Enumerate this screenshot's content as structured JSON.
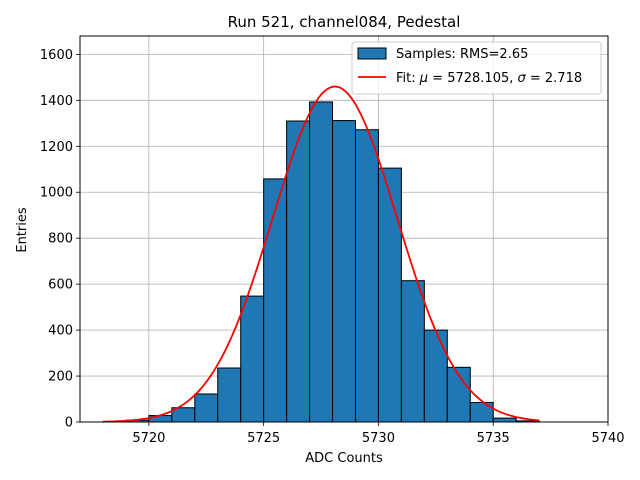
{
  "chart_data": {
    "type": "bar",
    "title": "Run 521, channel084, Pedestal",
    "xlabel": "ADC Counts",
    "ylabel": "Entries",
    "xlim": [
      5717,
      5740
    ],
    "ylim": [
      0,
      1680
    ],
    "xticks": [
      5720,
      5725,
      5730,
      5735,
      5740
    ],
    "yticks": [
      0,
      200,
      400,
      600,
      800,
      1000,
      1200,
      1400,
      1600
    ],
    "grid": true,
    "legend_position": "top-right",
    "colors": {
      "bars": "#1f77b4",
      "bar_edge": "#000000",
      "fit": "#ff0000",
      "grid": "#b0b0b0"
    },
    "histogram": {
      "name": "Samples: RMS=2.65",
      "bin_edges": [
        5718,
        5719,
        5720,
        5721,
        5722,
        5723,
        5724,
        5725,
        5726,
        5727,
        5728,
        5729,
        5730,
        5731,
        5732,
        5733,
        5734,
        5735,
        5736,
        5737
      ],
      "counts": [
        2,
        8,
        28,
        62,
        122,
        235,
        548,
        1058,
        1310,
        1393,
        1312,
        1272,
        1105,
        615,
        400,
        238,
        85,
        17,
        5
      ]
    },
    "fit": {
      "name": "Fit: μ = 5728.105, σ = 2.718",
      "label_prefix": "Fit: ",
      "mu_symbol": "μ",
      "mu_text": " = 5728.105, ",
      "sigma_symbol": "σ",
      "sigma_text": " = 2.718",
      "mu": 5728.105,
      "sigma": 2.718,
      "amplitude": 1460,
      "x_range": [
        5718,
        5737
      ]
    }
  }
}
